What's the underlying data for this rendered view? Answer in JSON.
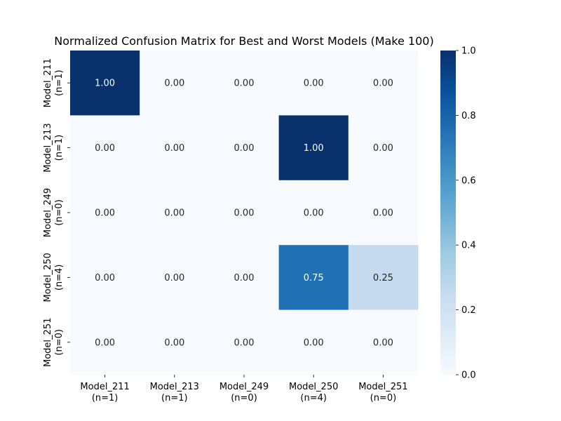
{
  "chart_data": {
    "type": "heatmap",
    "title": "Normalized Confusion Matrix for Best and Worst Models (Make 100)",
    "xlabel": "",
    "ylabel": "",
    "x_categories": [
      [
        "Model_211",
        "(n=1)"
      ],
      [
        "Model_213",
        "(n=1)"
      ],
      [
        "Model_249",
        "(n=0)"
      ],
      [
        "Model_250",
        "(n=4)"
      ],
      [
        "Model_251",
        "(n=0)"
      ]
    ],
    "y_categories": [
      [
        "Model_211",
        "(n=1)"
      ],
      [
        "Model_213",
        "(n=1)"
      ],
      [
        "Model_249",
        "(n=0)"
      ],
      [
        "Model_250",
        "(n=4)"
      ],
      [
        "Model_251",
        "(n=0)"
      ]
    ],
    "values": [
      [
        1.0,
        0.0,
        0.0,
        0.0,
        0.0
      ],
      [
        0.0,
        0.0,
        0.0,
        1.0,
        0.0
      ],
      [
        0.0,
        0.0,
        0.0,
        0.0,
        0.0
      ],
      [
        0.0,
        0.0,
        0.0,
        0.75,
        0.25
      ],
      [
        0.0,
        0.0,
        0.0,
        0.0,
        0.0
      ]
    ],
    "cell_labels": [
      [
        "1.00",
        "0.00",
        "0.00",
        "0.00",
        "0.00"
      ],
      [
        "0.00",
        "0.00",
        "0.00",
        "1.00",
        "0.00"
      ],
      [
        "0.00",
        "0.00",
        "0.00",
        "0.00",
        "0.00"
      ],
      [
        "0.00",
        "0.00",
        "0.00",
        "0.75",
        "0.25"
      ],
      [
        "0.00",
        "0.00",
        "0.00",
        "0.00",
        "0.00"
      ]
    ],
    "colormap": "Blues",
    "colormap_stops": [
      "#f7fbff",
      "#deebf7",
      "#c6dbef",
      "#9ecae1",
      "#6baed6",
      "#4292c6",
      "#2171b5",
      "#08519c",
      "#08306b"
    ],
    "colorbar": {
      "range": [
        0.0,
        1.0
      ],
      "ticks": [
        0.0,
        0.2,
        0.4,
        0.6,
        0.8,
        1.0
      ],
      "tick_labels": [
        "0.0",
        "0.2",
        "0.4",
        "0.6",
        "0.8",
        "1.0"
      ]
    },
    "grid": false,
    "legend": "colorbar-right"
  }
}
